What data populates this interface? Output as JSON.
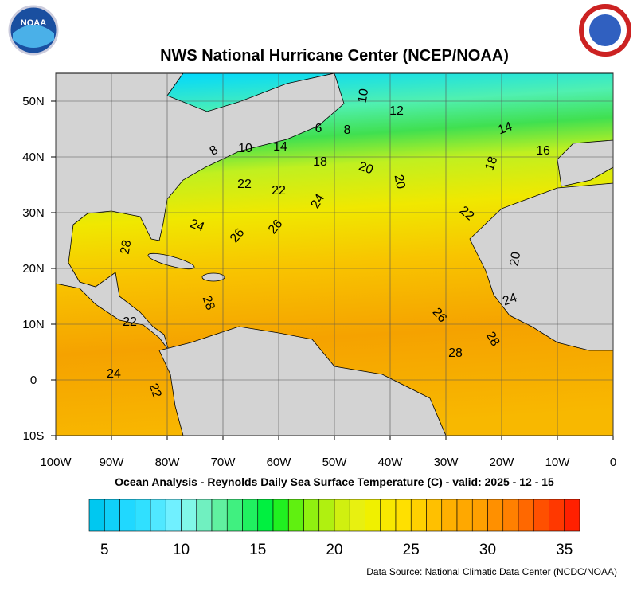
{
  "header": {
    "title": "NWS National Hurricane Center (NCEP/NOAA)",
    "logo_left": "NOAA"
  },
  "map": {
    "lonlim": [
      -100,
      0
    ],
    "latlim": [
      -10,
      55
    ],
    "lon_ticks": [
      {
        "value": -100,
        "label": "100W"
      },
      {
        "value": -90,
        "label": "90W"
      },
      {
        "value": -80,
        "label": "80W"
      },
      {
        "value": -70,
        "label": "70W"
      },
      {
        "value": -60,
        "label": "60W"
      },
      {
        "value": -50,
        "label": "50W"
      },
      {
        "value": -40,
        "label": "40W"
      },
      {
        "value": -30,
        "label": "30W"
      },
      {
        "value": -20,
        "label": "20W"
      },
      {
        "value": -10,
        "label": "10W"
      },
      0
    ],
    "lat_ticks": [
      {
        "value": 50,
        "label": "50N"
      },
      {
        "value": 40,
        "label": "40N"
      },
      {
        "value": 30,
        "label": "30N"
      },
      {
        "value": 20,
        "label": "20N"
      },
      {
        "value": 10,
        "label": "10N"
      },
      0,
      {
        "value": -10,
        "label": "10S"
      }
    ],
    "contour_labels": [
      "10",
      "12",
      "6",
      "8",
      "14",
      "10",
      "8",
      "14",
      "16",
      "18",
      "18",
      "20",
      "20",
      "22",
      "22",
      "24",
      "22",
      "24",
      "26",
      "26",
      "28",
      "20",
      "28",
      "24",
      "26",
      "22",
      "28",
      "28",
      "24",
      "22"
    ]
  },
  "subtitle": "Ocean Analysis - Reynolds Daily Sea Surface Temperature (C) - valid: 2025 - 12 - 15",
  "colorbar": {
    "range": [
      4,
      36
    ],
    "ticks": [
      5,
      10,
      15,
      20,
      25,
      30,
      35
    ],
    "colors": [
      "#00c8f0",
      "#10d0f8",
      "#20d8ff",
      "#30e0ff",
      "#50e8ff",
      "#70f0ff",
      "#80f8e8",
      "#70f0c0",
      "#60f0a0",
      "#40f080",
      "#20f060",
      "#00f040",
      "#20f020",
      "#60f010",
      "#90f010",
      "#b0f010",
      "#d0f010",
      "#e8f010",
      "#f0f000",
      "#f8e800",
      "#ffe000",
      "#ffd000",
      "#ffc000",
      "#ffb000",
      "#ffa800",
      "#ffa000",
      "#ff9000",
      "#ff8000",
      "#ff6800",
      "#ff5000",
      "#ff3800",
      "#ff2000"
    ]
  },
  "footer": {
    "source": "Data Source: National Climatic Data Center (NCDC/NOAA)"
  }
}
